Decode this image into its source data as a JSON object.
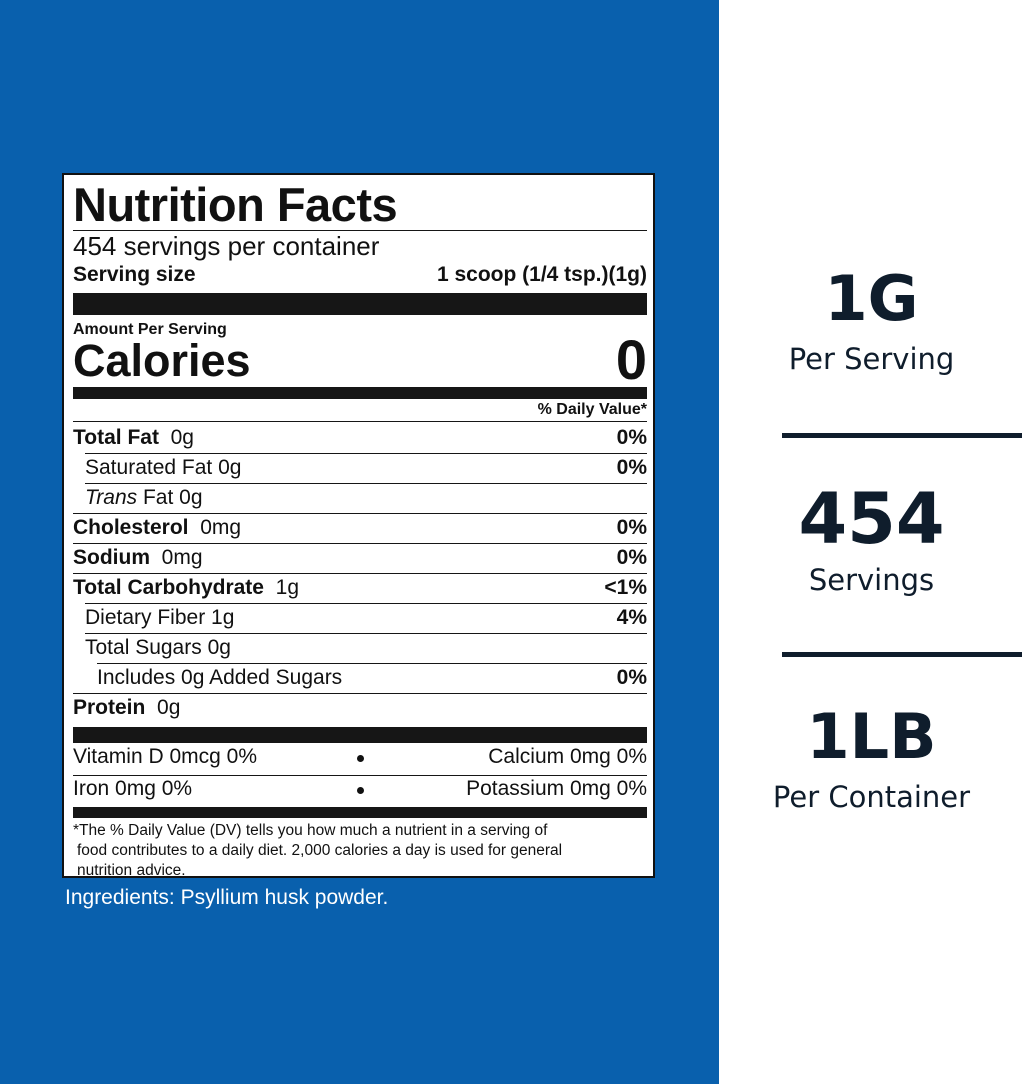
{
  "label": {
    "title": "Nutrition Facts",
    "servings_per_container": "454 servings per container",
    "serving_size_label": "Serving size",
    "serving_size_value": "1 scoop (1/4 tsp.)(1g)",
    "amount_per_serving": "Amount Per Serving",
    "calories_label": "Calories",
    "calories_value": "0",
    "daily_value_header": "% Daily Value*",
    "rows": [
      {
        "bold": "Total Fat",
        "text": "0g",
        "pct": "0%"
      },
      {
        "bold": "",
        "text": "Saturated Fat  0g",
        "pct": "0%"
      },
      {
        "italic": "Trans",
        "text": " Fat  0g",
        "pct": ""
      },
      {
        "bold": "Cholesterol",
        "text": "0mg",
        "pct": "0%"
      },
      {
        "bold": "Sodium",
        "text": "0mg",
        "pct": "0%"
      },
      {
        "bold": "Total Carbohydrate",
        "text": "1g",
        "pct": "<1%"
      },
      {
        "bold": "",
        "text": "Dietary Fiber 1g",
        "pct": "4%"
      },
      {
        "bold": "",
        "text": "Total Sugars  0g",
        "pct": ""
      },
      {
        "bold": "",
        "text": "Includes 0g Added Sugars",
        "pct": "0%"
      },
      {
        "bold": "Protein",
        "text": "0g",
        "pct": ""
      }
    ],
    "vitamins": {
      "vitamin_d": "Vitamin D  0mcg  0%",
      "calcium": "Calcium  0mg  0%",
      "iron": "Iron  0mg  0%",
      "potassium": "Potassium  0mg  0%"
    },
    "footnote": [
      "*The % Daily Value (DV) tells you how much a nutrient in a serving of",
      "food contributes to a daily diet.  2,000 calories a day is used for general",
      "nutrition advice."
    ]
  },
  "ingredients": "Ingredients: Psyllium husk powder.",
  "stats": {
    "serving_big": "1G",
    "serving_sub": "Per Serving",
    "servings_big": "454",
    "servings_sub": "Servings",
    "container_big": "1LB",
    "container_sub": "Per Container"
  },
  "colors": {
    "panel_blue": "#0960ad",
    "stat_text": "#0f1d2c"
  }
}
